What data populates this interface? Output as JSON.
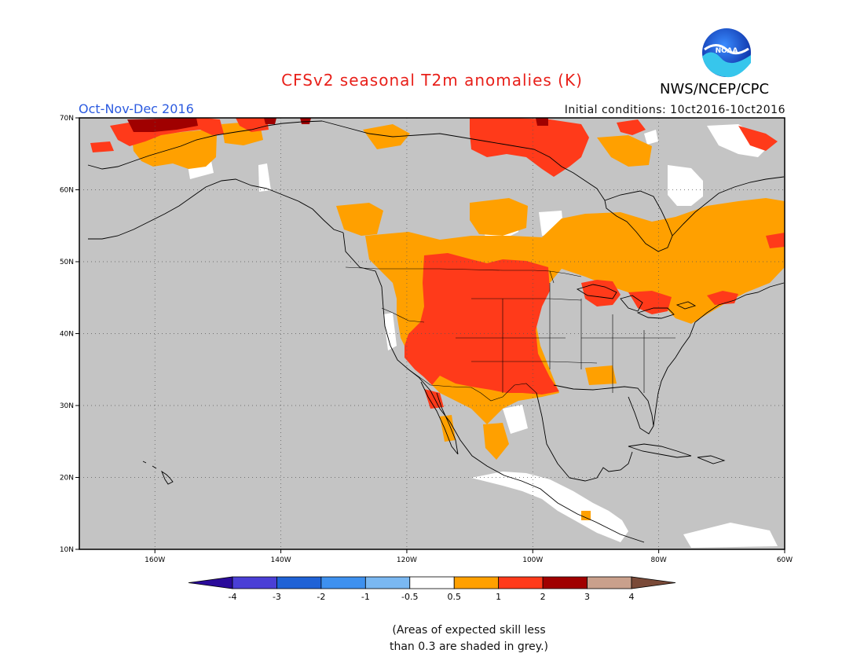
{
  "title": "CFSv2 seasonal T2m anomalies (K)",
  "agency": "NWS/NCEP/CPC",
  "logo_text": "NOAA",
  "season": "Oct-Nov-Dec 2016",
  "initial_conditions": "Initial conditions: 10ct2016-10ct2016",
  "note_line1": "(Areas of expected skill less",
  "note_line2": "than 0.3 are shaded in grey.)",
  "colors": {
    "no_skill": "#c4c4c4",
    "near_normal": "#ffffff",
    "anom_0_5_to_1": "#ffa000",
    "anom_1_to_2": "#ff3a1a",
    "anom_2_to_3": "#a00000",
    "coastline": "#000000"
  },
  "map": {
    "lon_range": [
      -172,
      -60
    ],
    "lat_range": [
      10,
      70
    ],
    "lon_ticks": [
      {
        "lon": -160,
        "label": "160W"
      },
      {
        "lon": -140,
        "label": "140W"
      },
      {
        "lon": -120,
        "label": "120W"
      },
      {
        "lon": -100,
        "label": "100W"
      },
      {
        "lon": -80,
        "label": "80W"
      },
      {
        "lon": -60,
        "label": "60W"
      }
    ],
    "lat_ticks": [
      {
        "lat": 70,
        "label": "70N"
      },
      {
        "lat": 60,
        "label": "60N"
      },
      {
        "lat": 50,
        "label": "50N"
      },
      {
        "lat": 40,
        "label": "40N"
      },
      {
        "lat": 30,
        "label": "30N"
      },
      {
        "lat": 20,
        "label": "20N"
      },
      {
        "lat": 10,
        "label": "10N"
      }
    ]
  },
  "legend": {
    "boxes": [
      {
        "color": "#2a0b9a"
      },
      {
        "color": "#4a3fd6"
      },
      {
        "color": "#1f62d6"
      },
      {
        "color": "#3e91ef"
      },
      {
        "color": "#7ab8f2"
      },
      {
        "color": "#ffffff"
      },
      {
        "color": "#ffa000"
      },
      {
        "color": "#ff3a1a"
      },
      {
        "color": "#a00000"
      },
      {
        "color": "#c9a08c"
      },
      {
        "color": "#7a4a38"
      }
    ],
    "labels": [
      "-4",
      "-3",
      "-2",
      "-1",
      "-0.5",
      "0.5",
      "1",
      "2",
      "3",
      "4"
    ]
  }
}
